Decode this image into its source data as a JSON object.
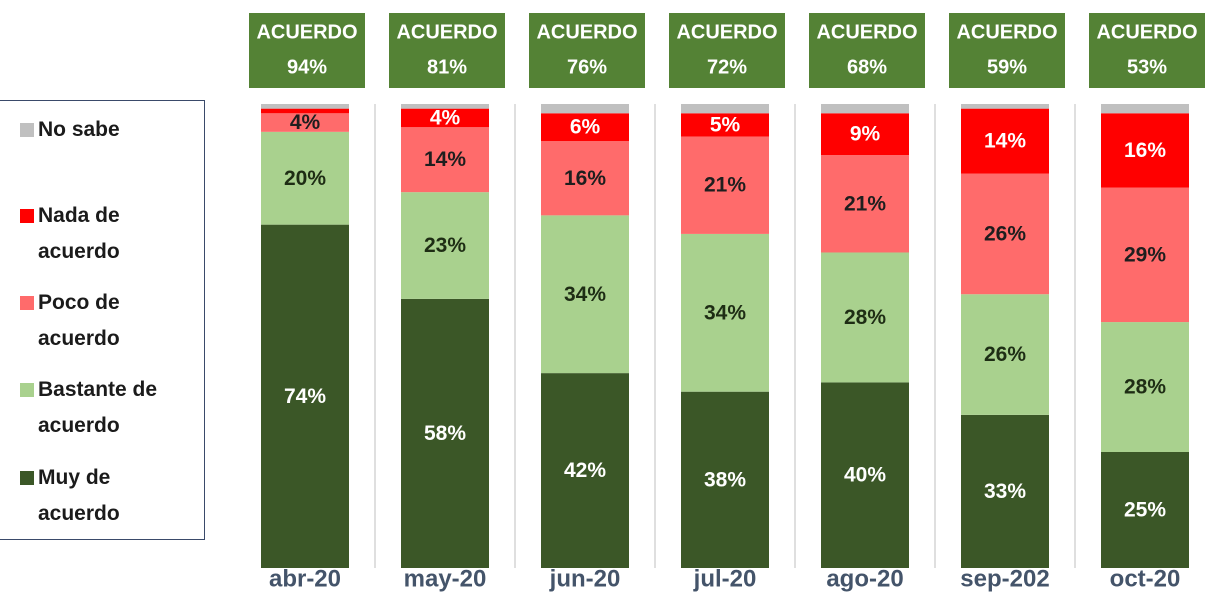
{
  "chart_data": {
    "type": "stacked-bar",
    "categories": [
      "abr-20",
      "may-20",
      "jun-20",
      "jul-20",
      "ago-20",
      "sep-202",
      "oct-20"
    ],
    "header_label": "ACUERDO",
    "header_values": [
      94,
      81,
      76,
      72,
      68,
      59,
      53
    ],
    "header_value_labels": [
      "94%",
      "81%",
      "76%",
      "72%",
      "68%",
      "59%",
      "53%"
    ],
    "ylim": [
      0,
      100
    ],
    "series": [
      {
        "name": "Muy de acuerdo",
        "color": "#3b5727",
        "label_color": "#ffffff",
        "values": [
          74,
          58,
          42,
          38,
          40,
          33,
          25
        ],
        "value_labels": [
          "74%",
          "58%",
          "42%",
          "38%",
          "40%",
          "33%",
          "25%"
        ]
      },
      {
        "name": "Bastante de acuerdo",
        "color": "#a9d18e",
        "label_color": "#1e2d14",
        "values": [
          20,
          23,
          34,
          34,
          28,
          26,
          28
        ],
        "value_labels": [
          "20%",
          "23%",
          "34%",
          "34%",
          "28%",
          "26%",
          "28%"
        ]
      },
      {
        "name": "Poco de acuerdo",
        "color": "#ff6b6b",
        "label_color": "#1e1e1e",
        "values": [
          4,
          14,
          16,
          21,
          21,
          26,
          29
        ],
        "value_labels": [
          "4%",
          "14%",
          "16%",
          "21%",
          "21%",
          "26%",
          "29%"
        ]
      },
      {
        "name": "Nada de acuerdo",
        "color": "#ff0000",
        "label_color": "#ffffff",
        "values": [
          1,
          4,
          6,
          5,
          9,
          14,
          16
        ],
        "value_labels": [
          null,
          "4%",
          "6%",
          "5%",
          "9%",
          "14%",
          "16%"
        ]
      },
      {
        "name": "No sabe",
        "color": "#c0c0c0",
        "label_color": "#1e1e1e",
        "values": [
          1,
          1,
          2,
          2,
          2,
          1,
          2
        ],
        "value_labels": [
          null,
          null,
          null,
          null,
          null,
          null,
          null
        ]
      }
    ]
  }
}
